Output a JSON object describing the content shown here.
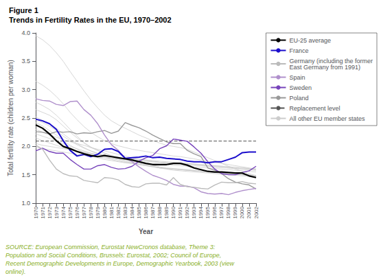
{
  "chart_data": {
    "type": "line",
    "title": "Figure 1",
    "subtitle": "Trends in Fertility Rates in the EU, 1970–2002",
    "xlabel": "Year",
    "ylabel": "Total fertility rate (children per woman)",
    "x": [
      1970,
      1971,
      1972,
      1973,
      1974,
      1975,
      1976,
      1977,
      1978,
      1979,
      1980,
      1981,
      1982,
      1983,
      1984,
      1985,
      1986,
      1987,
      1988,
      1989,
      1990,
      1991,
      1992,
      1993,
      1994,
      1995,
      1996,
      1997,
      1998,
      1999,
      2000,
      2001,
      2002
    ],
    "xlim": [
      1970,
      2002
    ],
    "xticks": [
      1970,
      1971,
      1972,
      1973,
      1974,
      1975,
      1976,
      1977,
      1978,
      1979,
      1980,
      1981,
      1982,
      1983,
      1984,
      1985,
      1986,
      1987,
      1988,
      1989,
      1990,
      1991,
      1992,
      1993,
      1994,
      1995,
      1996,
      1997,
      1998,
      1999,
      2000,
      2001,
      2002
    ],
    "ylim": [
      1.0,
      4.0
    ],
    "yticks": [
      {
        "value": 1.0,
        "label": "1.0"
      },
      1.5,
      {
        "value": 2.0,
        "label": "2.0"
      },
      2.5,
      {
        "value": 3.0,
        "label": "3.0"
      },
      3.5,
      {
        "value": 4.0,
        "label": "4.0"
      }
    ],
    "grid": false,
    "legend": "right",
    "series": [
      {
        "name": "EU-25 average",
        "color": "#000000",
        "values": [
          2.38,
          2.32,
          2.22,
          2.1,
          2.0,
          1.96,
          1.91,
          1.87,
          1.84,
          1.82,
          1.84,
          1.82,
          1.8,
          1.78,
          1.76,
          1.73,
          1.7,
          1.68,
          1.68,
          1.68,
          1.7,
          1.7,
          1.67,
          1.62,
          1.59,
          1.56,
          1.55,
          1.55,
          1.54,
          1.53,
          1.53,
          1.48,
          1.45
        ]
      },
      {
        "name": "France",
        "color": "#1a0dcc",
        "values": [
          2.48,
          2.45,
          2.4,
          2.3,
          2.1,
          1.93,
          1.83,
          1.86,
          1.82,
          1.86,
          1.95,
          1.96,
          1.91,
          1.79,
          1.8,
          1.81,
          1.83,
          1.8,
          1.81,
          1.79,
          1.78,
          1.77,
          1.74,
          1.73,
          1.73,
          1.71,
          1.73,
          1.73,
          1.77,
          1.81,
          1.89,
          1.9,
          1.9
        ]
      },
      {
        "name": "Germany (including the former\nEast Germany from 1991)",
        "color": "#bbbbbb",
        "values": [
          2.02,
          1.95,
          1.76,
          1.6,
          1.52,
          1.48,
          1.47,
          1.4,
          1.38,
          1.36,
          1.45,
          1.44,
          1.41,
          1.33,
          1.29,
          1.28,
          1.34,
          1.35,
          1.35,
          1.32,
          1.45,
          1.33,
          1.29,
          1.28,
          1.26,
          1.25,
          1.32,
          1.37,
          1.36,
          1.36,
          1.38,
          1.35,
          1.34
        ]
      },
      {
        "name": "Spain",
        "color": "#b090cc",
        "values": [
          2.84,
          2.81,
          2.8,
          2.74,
          2.72,
          2.79,
          2.8,
          2.65,
          2.55,
          2.4,
          2.2,
          2.03,
          1.93,
          1.8,
          1.73,
          1.64,
          1.56,
          1.49,
          1.45,
          1.4,
          1.33,
          1.3,
          1.3,
          1.27,
          1.2,
          1.17,
          1.16,
          1.17,
          1.15,
          1.19,
          1.22,
          1.24,
          1.26
        ]
      },
      {
        "name": "Sweden",
        "color": "#7744bb",
        "values": [
          1.92,
          1.97,
          1.91,
          1.88,
          1.88,
          1.77,
          1.68,
          1.6,
          1.6,
          1.66,
          1.68,
          1.63,
          1.6,
          1.61,
          1.65,
          1.74,
          1.8,
          1.84,
          1.96,
          2.01,
          2.13,
          2.11,
          2.09,
          1.99,
          1.88,
          1.73,
          1.6,
          1.52,
          1.5,
          1.5,
          1.54,
          1.57,
          1.65
        ]
      },
      {
        "name": "Poland",
        "color": "#999999",
        "values": [
          2.26,
          2.25,
          2.22,
          2.26,
          2.25,
          2.26,
          2.22,
          2.24,
          2.23,
          2.26,
          2.28,
          2.23,
          2.27,
          2.42,
          2.37,
          2.33,
          2.27,
          2.2,
          2.14,
          2.08,
          2.05,
          2.05,
          1.93,
          1.87,
          1.82,
          1.62,
          1.58,
          1.52,
          1.43,
          1.37,
          1.34,
          1.32,
          1.25
        ]
      },
      {
        "name": "Replacement level",
        "type": "hline",
        "color": "#555555",
        "line_style": "dashed",
        "value": 2.1
      },
      {
        "name": "All other EU member states",
        "color": "#cccccc",
        "values": [
          2.22,
          2.18,
          2.14,
          2.1,
          2.05,
          2.0,
          1.96,
          1.92,
          1.88,
          1.84,
          1.8,
          1.77,
          1.74,
          1.72,
          1.7,
          1.68,
          1.66,
          1.64,
          1.62,
          1.61,
          1.6,
          1.59,
          1.58,
          1.57,
          1.56,
          1.55,
          1.54,
          1.53,
          1.52,
          1.51,
          1.5,
          1.49,
          1.48
        ]
      },
      {
        "name": "All other EU member states",
        "color": "#cccccc",
        "values": [
          2.05,
          2.02,
          2.0,
          1.98,
          1.96,
          1.94,
          1.92,
          1.9,
          1.88,
          1.86,
          1.84,
          1.82,
          1.8,
          1.79,
          1.78,
          1.77,
          1.76,
          1.75,
          1.74,
          1.73,
          1.72,
          1.71,
          1.7,
          1.69,
          1.68,
          1.67,
          1.66,
          1.65,
          1.64,
          1.63,
          1.62,
          1.61,
          1.6
        ]
      },
      {
        "name": "All other EU member states",
        "color": "#cccccc",
        "values": [
          2.65,
          2.6,
          2.55,
          2.47,
          2.36,
          2.25,
          2.15,
          2.06,
          1.98,
          1.93,
          1.88,
          1.83,
          1.78,
          1.75,
          1.72,
          1.7,
          1.68,
          1.65,
          1.62,
          1.6,
          1.58,
          1.57,
          1.56,
          1.55,
          1.54,
          1.53,
          1.52,
          1.51,
          1.5,
          1.49,
          1.48,
          1.47,
          1.46
        ]
      },
      {
        "name": "All other EU member states",
        "color": "#cccccc",
        "values": [
          2.78,
          2.72,
          2.65,
          2.55,
          2.43,
          2.3,
          2.18,
          2.07,
          1.99,
          1.93,
          1.88,
          1.84,
          1.8,
          1.77,
          1.74,
          1.72,
          1.7,
          1.67,
          1.64,
          1.62,
          1.61,
          1.6,
          1.59,
          1.58,
          1.57,
          1.56,
          1.55,
          1.54,
          1.53,
          1.52,
          1.51,
          1.5,
          1.49
        ]
      },
      {
        "name": "All other EU member states",
        "color": "#cccccc",
        "values": [
          2.42,
          2.36,
          2.28,
          2.2,
          2.1,
          2.02,
          1.95,
          1.89,
          1.84,
          1.8,
          1.77,
          1.75,
          1.73,
          1.71,
          1.7,
          1.68,
          1.66,
          1.64,
          1.62,
          1.61,
          1.6,
          1.59,
          1.58,
          1.57,
          1.56,
          1.55,
          1.54,
          1.53,
          1.52,
          1.51,
          1.5,
          1.49,
          1.48
        ]
      },
      {
        "name": "All other EU member states",
        "color": "#cccccc",
        "values": [
          3.95,
          3.88,
          3.78,
          3.65,
          3.5,
          3.32,
          3.15,
          2.98,
          2.82,
          2.68,
          2.55,
          2.45,
          2.38,
          2.32,
          2.26,
          2.2,
          2.15,
          2.1,
          2.06,
          2.02,
          2.0,
          1.98,
          1.95,
          1.9,
          1.85,
          1.8,
          1.75,
          1.7,
          1.65,
          1.6,
          1.56,
          1.52,
          1.48
        ]
      },
      {
        "name": "All other EU member states",
        "color": "#cccccc",
        "values": [
          2.3,
          2.25,
          2.2,
          2.16,
          2.12,
          2.08,
          2.05,
          2.02,
          1.98,
          1.95,
          1.92,
          1.89,
          1.86,
          1.83,
          1.8,
          1.78,
          1.76,
          1.74,
          1.72,
          1.71,
          1.7,
          1.69,
          1.68,
          1.67,
          1.66,
          1.65,
          1.64,
          1.63,
          1.62,
          1.61,
          1.6,
          1.59,
          1.58
        ]
      },
      {
        "name": "All other EU member states",
        "color": "#cccccc",
        "values": [
          2.48,
          2.42,
          2.36,
          2.28,
          2.18,
          2.1,
          2.03,
          1.97,
          1.92,
          1.88,
          1.85,
          1.82,
          1.79,
          1.77,
          1.75,
          1.73,
          1.71,
          1.7,
          1.69,
          1.68,
          1.67,
          1.66,
          1.65,
          1.64,
          1.63,
          1.62,
          1.61,
          1.6,
          1.59,
          1.58,
          1.57,
          1.56,
          1.55
        ]
      },
      {
        "name": "All other EU member states",
        "color": "#cccccc",
        "values": [
          2.15,
          2.1,
          2.06,
          2.02,
          1.98,
          1.95,
          1.92,
          1.89,
          1.86,
          1.84,
          1.82,
          1.8,
          1.78,
          1.77,
          1.76,
          1.75,
          1.74,
          1.73,
          1.72,
          1.71,
          1.7,
          1.69,
          1.68,
          1.67,
          1.66,
          1.65,
          1.64,
          1.63,
          1.62,
          1.61,
          1.6,
          1.59,
          1.58
        ]
      },
      {
        "name": "All other EU member states",
        "color": "#cccccc",
        "values": [
          3.15,
          3.08,
          2.99,
          2.88,
          2.75,
          2.6,
          2.47,
          2.35,
          2.25,
          2.17,
          2.1,
          2.05,
          2.01,
          1.98,
          1.95,
          1.93,
          1.91,
          1.89,
          1.87,
          1.85,
          1.83,
          1.82,
          1.8,
          1.78,
          1.76,
          1.74,
          1.72,
          1.7,
          1.68,
          1.66,
          1.64,
          1.62,
          1.6
        ]
      },
      {
        "name": "All other EU member states",
        "color": "#cccccc",
        "values": [
          2.52,
          2.46,
          2.4,
          2.32,
          2.22,
          2.13,
          2.05,
          1.98,
          1.92,
          1.87,
          1.83,
          1.79,
          1.76,
          1.73,
          1.71,
          1.69,
          1.67,
          1.65,
          1.63,
          1.61,
          1.6,
          1.59,
          1.58,
          1.57,
          1.56,
          1.55,
          1.54,
          1.53,
          1.52,
          1.51,
          1.5,
          1.49,
          1.48
        ]
      },
      {
        "name": "All other EU member states",
        "color": "#cccccc",
        "values": [
          1.98,
          1.96,
          1.94,
          1.92,
          1.9,
          1.88,
          1.86,
          1.84,
          1.82,
          1.81,
          1.8,
          1.79,
          1.78,
          1.77,
          1.76,
          1.75,
          1.74,
          1.73,
          1.72,
          1.71,
          1.71,
          1.71,
          1.7,
          1.69,
          1.68,
          1.67,
          1.66,
          1.65,
          1.64,
          1.63,
          1.62,
          1.61,
          1.6
        ]
      }
    ],
    "annotations": [
      {
        "text": "SOURCE: European Commission, Eurostat NewCronos database, Theme 3:\nPopulation and Social Conditions, Brussels: Eurostat, 2002; Council of Europe,\nRecent Demographic Developments in Europe, Demographic Yearbook, 2003 (view\nonline).",
        "color": "#8aaf28"
      }
    ]
  }
}
